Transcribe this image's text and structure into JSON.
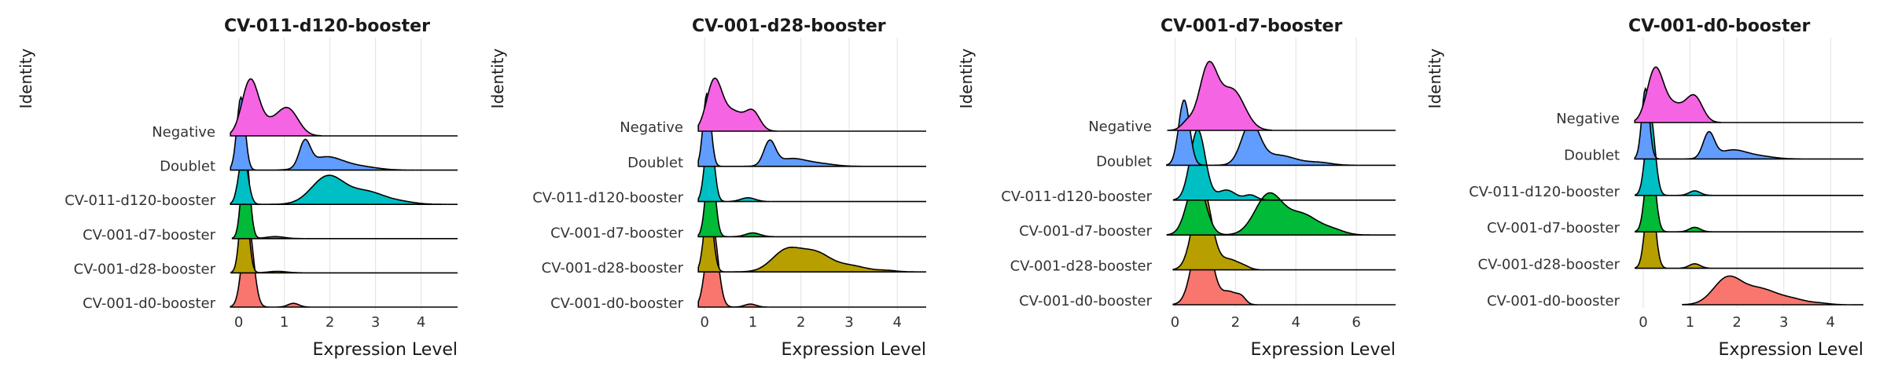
{
  "colors": {
    "Negative": "#F564E3",
    "Doublet": "#619CFF",
    "CV-011-d120-booster": "#00BFC4",
    "CV-001-d7-booster": "#00BA38",
    "CV-001-d28-booster": "#B79F00",
    "CV-001-d0-booster": "#F8766D"
  },
  "chart_data": [
    {
      "type": "ridgeline",
      "title": "CV-011-d120-booster",
      "xlabel": "Expression Level",
      "ylabel": "Identity",
      "xlim": [
        -0.2,
        4.8
      ],
      "xticks": [
        0,
        1,
        2,
        3,
        4
      ],
      "categories": [
        "Negative",
        "Doublet",
        "CV-011-d120-booster",
        "CV-001-d7-booster",
        "CV-001-d28-booster",
        "CV-001-d0-booster"
      ],
      "series": [
        {
          "name": "Negative",
          "peaks": [
            [
              0.25,
              2.1,
              0.18
            ],
            [
              1.1,
              0.9,
              0.22
            ],
            [
              0.7,
              0.5,
              0.3
            ]
          ]
        },
        {
          "name": "Doublet",
          "peaks": [
            [
              0.05,
              2.9,
              0.09
            ],
            [
              1.45,
              1.0,
              0.12
            ],
            [
              1.9,
              0.5,
              0.35
            ],
            [
              2.6,
              0.15,
              0.4
            ]
          ]
        },
        {
          "name": "CV-011-d120-booster",
          "peaks": [
            [
              0.1,
              2.0,
              0.1
            ],
            [
              1.95,
              1.1,
              0.35
            ],
            [
              2.8,
              0.5,
              0.4
            ],
            [
              3.6,
              0.08,
              0.3
            ]
          ]
        },
        {
          "name": "CV-001-d7-booster",
          "peaks": [
            [
              0.15,
              3.4,
              0.09
            ],
            [
              0.8,
              0.08,
              0.2
            ]
          ]
        },
        {
          "name": "CV-001-d28-booster",
          "peaks": [
            [
              0.12,
              3.4,
              0.09
            ],
            [
              0.85,
              0.06,
              0.2
            ]
          ]
        },
        {
          "name": "CV-001-d0-booster",
          "peaks": [
            [
              0.2,
              3.4,
              0.12
            ],
            [
              1.2,
              0.15,
              0.12
            ]
          ]
        }
      ]
    },
    {
      "type": "ridgeline",
      "title": "CV-001-d28-booster",
      "xlabel": "Expression Level",
      "ylabel": "Identity",
      "xlim": [
        -0.15,
        4.6
      ],
      "xticks": [
        0,
        1,
        2,
        3,
        4
      ],
      "categories": [
        "Negative",
        "Doublet",
        "CV-011-d120-booster",
        "CV-001-d7-booster",
        "CV-001-d28-booster",
        "CV-001-d0-booster"
      ],
      "series": [
        {
          "name": "Negative",
          "peaks": [
            [
              0.2,
              2.0,
              0.16
            ],
            [
              1.0,
              0.75,
              0.15
            ],
            [
              0.6,
              0.75,
              0.2
            ]
          ]
        },
        {
          "name": "Doublet",
          "peaks": [
            [
              0.05,
              2.9,
              0.08
            ],
            [
              1.35,
              0.95,
              0.12
            ],
            [
              1.8,
              0.3,
              0.3
            ],
            [
              2.4,
              0.1,
              0.3
            ]
          ]
        },
        {
          "name": "CV-011-d120-booster",
          "peaks": [
            [
              0.1,
              3.0,
              0.09
            ],
            [
              0.9,
              0.15,
              0.15
            ]
          ]
        },
        {
          "name": "CV-001-d7-booster",
          "peaks": [
            [
              0.12,
              3.3,
              0.09
            ],
            [
              1.0,
              0.15,
              0.15
            ]
          ]
        },
        {
          "name": "CV-001-d28-booster",
          "peaks": [
            [
              0.08,
              2.8,
              0.09
            ],
            [
              1.7,
              0.85,
              0.3
            ],
            [
              2.3,
              0.7,
              0.3
            ],
            [
              3.0,
              0.25,
              0.35
            ],
            [
              3.8,
              0.05,
              0.2
            ]
          ]
        },
        {
          "name": "CV-001-d0-booster",
          "peaks": [
            [
              0.15,
              3.4,
              0.12
            ],
            [
              0.95,
              0.12,
              0.12
            ]
          ]
        }
      ]
    },
    {
      "type": "ridgeline",
      "title": "CV-001-d7-booster",
      "xlabel": "Expression Level",
      "ylabel": "Identity",
      "xlim": [
        -0.3,
        7.3
      ],
      "xticks": [
        0,
        2,
        4,
        6
      ],
      "categories": [
        "Negative",
        "Doublet",
        "CV-011-d120-booster",
        "CV-001-d7-booster",
        "CV-001-d28-booster",
        "CV-001-d0-booster"
      ],
      "series": [
        {
          "name": "Negative",
          "peaks": [
            [
              1.1,
              2.5,
              0.3
            ],
            [
              1.9,
              1.6,
              0.4
            ],
            [
              0.4,
              0.3,
              0.2
            ]
          ]
        },
        {
          "name": "Doublet",
          "peaks": [
            [
              0.3,
              2.6,
              0.18
            ],
            [
              2.5,
              1.6,
              0.3
            ],
            [
              3.4,
              0.4,
              0.6
            ],
            [
              4.8,
              0.1,
              0.4
            ]
          ]
        },
        {
          "name": "CV-011-d120-booster",
          "peaks": [
            [
              0.75,
              2.8,
              0.25
            ],
            [
              1.7,
              0.4,
              0.3
            ],
            [
              2.5,
              0.2,
              0.2
            ]
          ]
        },
        {
          "name": "CV-001-d7-booster",
          "peaks": [
            [
              0.7,
              2.2,
              0.3
            ],
            [
              3.1,
              1.6,
              0.45
            ],
            [
              4.2,
              0.8,
              0.5
            ],
            [
              5.2,
              0.2,
              0.4
            ]
          ]
        },
        {
          "name": "CV-001-d28-booster",
          "peaks": [
            [
              0.9,
              3.3,
              0.3
            ],
            [
              1.8,
              0.4,
              0.3
            ],
            [
              2.3,
              0.1,
              0.2
            ]
          ]
        },
        {
          "name": "CV-001-d0-booster",
          "peaks": [
            [
              0.9,
              3.3,
              0.3
            ],
            [
              1.8,
              0.5,
              0.25
            ],
            [
              2.2,
              0.25,
              0.15
            ]
          ]
        }
      ]
    },
    {
      "type": "ridgeline",
      "title": "CV-001-d0-booster",
      "xlabel": "Expression Level",
      "ylabel": "Identity",
      "xlim": [
        -0.2,
        4.7
      ],
      "xticks": [
        0,
        1,
        2,
        3,
        4
      ],
      "categories": [
        "Negative",
        "Doublet",
        "CV-011-d120-booster",
        "CV-001-d7-booster",
        "CV-001-d28-booster",
        "CV-001-d0-booster"
      ],
      "series": [
        {
          "name": "Negative",
          "peaks": [
            [
              0.25,
              2.0,
              0.17
            ],
            [
              1.1,
              0.95,
              0.17
            ],
            [
              0.65,
              0.7,
              0.25
            ]
          ]
        },
        {
          "name": "Doublet",
          "peaks": [
            [
              0.05,
              2.8,
              0.08
            ],
            [
              1.4,
              1.0,
              0.12
            ],
            [
              1.9,
              0.35,
              0.3
            ],
            [
              2.5,
              0.1,
              0.3
            ]
          ]
        },
        {
          "name": "CV-011-d120-booster",
          "peaks": [
            [
              0.15,
              3.2,
              0.1
            ],
            [
              1.1,
              0.18,
              0.12
            ]
          ]
        },
        {
          "name": "CV-001-d7-booster",
          "peaks": [
            [
              0.15,
              3.3,
              0.1
            ],
            [
              1.1,
              0.18,
              0.12
            ]
          ]
        },
        {
          "name": "CV-001-d28-booster",
          "peaks": [
            [
              0.15,
              3.3,
              0.1
            ],
            [
              1.1,
              0.18,
              0.12
            ]
          ]
        },
        {
          "name": "CV-001-d0-booster",
          "peaks": [
            [
              1.8,
              1.05,
              0.3
            ],
            [
              2.5,
              0.6,
              0.35
            ],
            [
              3.2,
              0.2,
              0.3
            ],
            [
              3.8,
              0.05,
              0.2
            ]
          ]
        }
      ]
    }
  ]
}
